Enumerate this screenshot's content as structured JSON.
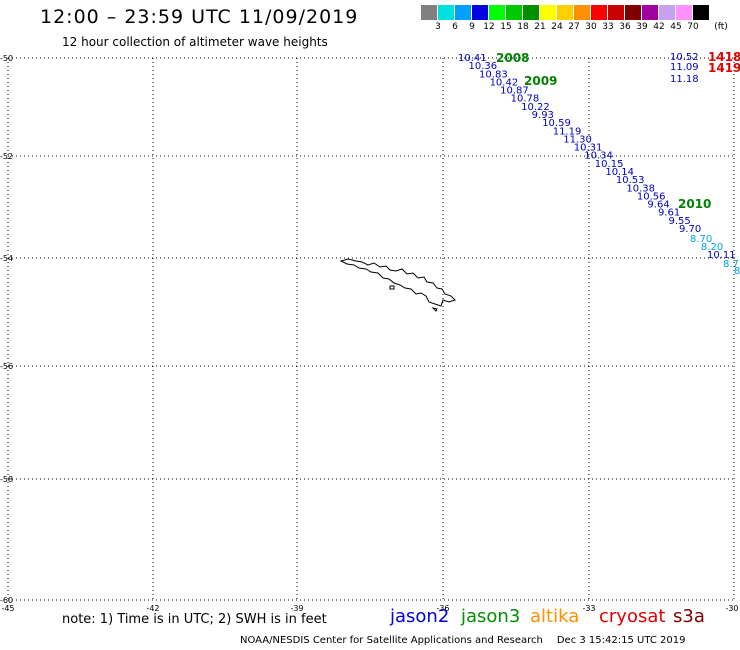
{
  "header": {
    "title": "12:00 – 23:59 UTC 11/09/2019",
    "subtitle": "12 hour collection of altimeter wave heights"
  },
  "scale": {
    "unit": "(ft)",
    "segments": [
      {
        "label": "3",
        "color": "#808080"
      },
      {
        "label": "6",
        "color": "#00e0e0"
      },
      {
        "label": "9",
        "color": "#00a0ff"
      },
      {
        "label": "12",
        "color": "#0000e0"
      },
      {
        "label": "15",
        "color": "#00ff00"
      },
      {
        "label": "18",
        "color": "#00c800"
      },
      {
        "label": "21",
        "color": "#009000"
      },
      {
        "label": "24",
        "color": "#ffff00"
      },
      {
        "label": "27",
        "color": "#ffd000"
      },
      {
        "label": "30",
        "color": "#ff9000"
      },
      {
        "label": "33",
        "color": "#ff0000"
      },
      {
        "label": "36",
        "color": "#c80000"
      },
      {
        "label": "39",
        "color": "#800000"
      },
      {
        "label": "42",
        "color": "#a000a0"
      },
      {
        "label": "45",
        "color": "#c8a0f0"
      },
      {
        "label": "70",
        "color": "#ff90ff"
      },
      {
        "label": "",
        "color": "#000000"
      }
    ]
  },
  "map": {
    "lat_labels": [
      "-50",
      "-52",
      "-54",
      "-56",
      "-58",
      "-60"
    ],
    "lon_labels": [
      "-45",
      "-42",
      "-39",
      "-36",
      "-33",
      "-30"
    ],
    "times": [
      {
        "label": "2008",
        "color": "#008000"
      },
      {
        "label": "2009",
        "color": "#008000"
      },
      {
        "label": "2010",
        "color": "#008000"
      },
      {
        "label": "1418",
        "color": "#e00000"
      },
      {
        "label": "1419",
        "color": "#e00000"
      }
    ],
    "track_main": {
      "color": "#0000c0",
      "values": [
        "10.41",
        "10.36",
        "10.83",
        "10.42",
        "10.87",
        "10.78",
        "10.22",
        "9.93",
        "10.59",
        "11.19",
        "11.30",
        "10.31",
        "10.34",
        "10.15",
        "10.14",
        "10.53",
        "10.38",
        "10.56",
        "9.64",
        "9.61",
        "9.55",
        "9.70"
      ]
    },
    "track_light": {
      "color": "#00a0e0",
      "values": [
        "8.70",
        "8.20"
      ]
    },
    "track_tail": {
      "values": [
        {
          "label": "10.11",
          "color": "#0000c0"
        },
        {
          "label": "8.7",
          "color": "#00a0e0"
        },
        {
          "label": "8",
          "color": "#00a0e0"
        }
      ]
    },
    "track_right": {
      "color": "#0000c0",
      "values": [
        "10.52",
        "11.09",
        "11.18"
      ]
    }
  },
  "footer": {
    "note": "note: 1) Time is in UTC; 2) SWH is in feet",
    "satellites": [
      {
        "name": "jason2",
        "color": "#0000e0"
      },
      {
        "name": "jason3",
        "color": "#009000"
      },
      {
        "name": "altika",
        "color": "#ff9000"
      },
      {
        "name": "cryosat",
        "color": "#e00000"
      },
      {
        "name": "s3a",
        "color": "#800000"
      }
    ],
    "credit": "NOAA/NESDIS Center for Satellite Applications and Research",
    "timestamp": "Dec  3 15:42:15 UTC 2019"
  }
}
